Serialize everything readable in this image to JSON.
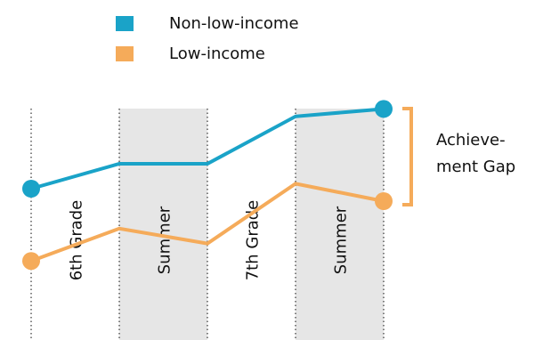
{
  "chart_data": {
    "type": "line",
    "categories": [
      null,
      null,
      null,
      null,
      null
    ],
    "periods": [
      "6th Grade",
      "Summer",
      "7th Grade",
      "Summer"
    ],
    "shaded": [
      false,
      true,
      false,
      true
    ],
    "series": [
      {
        "name": "Non-low-income",
        "color": "#1aa3c8",
        "values": [
          60,
          70,
          70,
          89,
          92
        ]
      },
      {
        "name": "Low-income",
        "color": "#f5ab5a",
        "values": [
          31,
          44,
          38,
          62,
          55
        ]
      }
    ],
    "ylim": [
      0,
      100
    ],
    "annotation": [
      "Achieve-",
      "ment Gap"
    ]
  }
}
